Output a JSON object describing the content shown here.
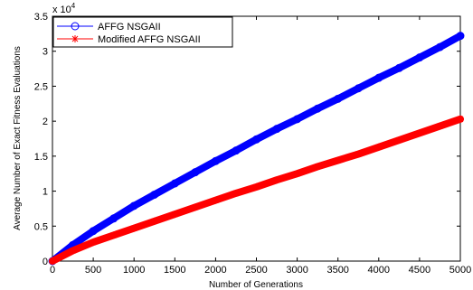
{
  "chart_data": {
    "type": "line",
    "xlabel": "Number of Generations",
    "ylabel": "Average Number of Exact Fitness Evaluations",
    "xlim": [
      0,
      5000
    ],
    "ylim": [
      0,
      35000
    ],
    "x_ticks": [
      "0",
      "500",
      "1000",
      "1500",
      "2000",
      "2500",
      "3000",
      "3500",
      "4000",
      "4500",
      "5000"
    ],
    "y_ticks": [
      "0",
      "0.5",
      "1",
      "1.5",
      "2",
      "2.5",
      "3",
      "3.5"
    ],
    "y_multiplier": "x 10",
    "y_multiplier_exp": "4",
    "grid": false,
    "legend_position": "top-left",
    "series": [
      {
        "name": "AFFG NSGAII",
        "color": "#0000ff",
        "marker": "circle",
        "x": [
          0,
          250,
          500,
          750,
          1000,
          1250,
          1500,
          1750,
          2000,
          2250,
          2500,
          2750,
          3000,
          3250,
          3500,
          3750,
          4000,
          4250,
          4500,
          4750,
          5000
        ],
        "values": [
          0,
          2300,
          4300,
          6100,
          7900,
          9500,
          11100,
          12700,
          14300,
          15800,
          17400,
          18900,
          20300,
          21800,
          23200,
          24700,
          26200,
          27600,
          29100,
          30600,
          32200
        ]
      },
      {
        "name": "Modified AFFG NSGAII",
        "color": "#ff0000",
        "marker": "asterisk",
        "x": [
          0,
          250,
          500,
          750,
          1000,
          1250,
          1500,
          1750,
          2000,
          2250,
          2500,
          2750,
          3000,
          3250,
          3500,
          3750,
          4000,
          4250,
          4500,
          4750,
          5000
        ],
        "values": [
          0,
          1500,
          2700,
          3700,
          4700,
          5700,
          6700,
          7700,
          8700,
          9700,
          10600,
          11600,
          12500,
          13500,
          14400,
          15300,
          16300,
          17300,
          18300,
          19300,
          20300
        ]
      }
    ]
  }
}
